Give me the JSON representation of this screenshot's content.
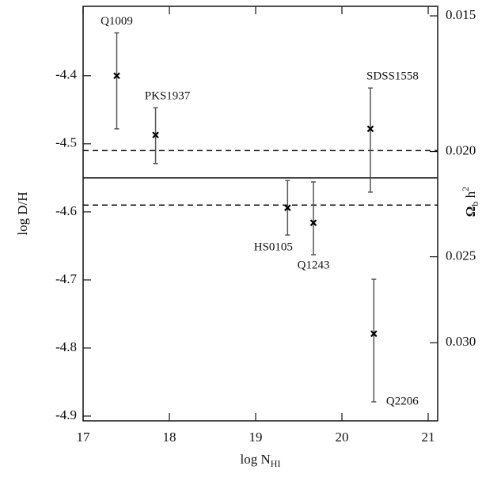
{
  "chart_data": {
    "type": "errorbar",
    "xlabel": "log N",
    "xlabel_sub": "HI",
    "ylabel": "log D/H",
    "y2label": {
      "text": "Ω",
      "sub": "b",
      "rest": " h",
      "sup": "2"
    },
    "labels": [
      "Q1009",
      "PKS1937",
      "HS0105",
      "Q1243",
      "SDSS1558",
      "Q2206"
    ],
    "x": [
      17.39,
      17.84,
      19.37,
      19.67,
      20.33,
      20.37
    ],
    "values": [
      -4.4,
      -4.487,
      -4.594,
      -4.616,
      -4.478,
      -4.779
    ],
    "err_plus": [
      0.063,
      0.04,
      0.04,
      0.06,
      0.06,
      0.08
    ],
    "err_minus": [
      0.078,
      0.042,
      0.04,
      0.047,
      0.093,
      0.1
    ],
    "color": "#000000",
    "error_color": "#555555",
    "hlines": [
      {
        "value": -4.55,
        "style": "solid"
      },
      {
        "value": -4.51,
        "style": "dashed"
      },
      {
        "value": -4.59,
        "style": "dashed"
      }
    ],
    "xlim": [
      17,
      21.11
    ],
    "xticks": [
      17,
      18,
      19,
      20,
      21
    ],
    "ylim": [
      -4.907,
      -4.298
    ],
    "yticks": [
      -4.4,
      -4.5,
      -4.6,
      -4.7,
      -4.8,
      -4.9
    ],
    "y2lim": [
      0.0354,
      0.0147
    ],
    "y2log": true,
    "y2ticks": [
      0.015,
      {
        "value": 0.02,
        "label": "0.020"
      },
      0.025,
      {
        "value": 0.03,
        "label": "0.030"
      }
    ]
  }
}
